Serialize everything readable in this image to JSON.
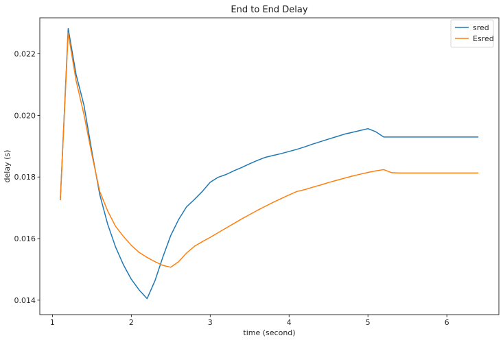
{
  "chart_data": {
    "type": "line",
    "title": "End to End Delay",
    "xlabel": "time (second)",
    "ylabel": "delay (s)",
    "xlim": [
      0.84,
      6.66
    ],
    "ylim": [
      0.01353,
      0.02317
    ],
    "xticks": [
      1,
      2,
      3,
      4,
      5,
      6
    ],
    "yticks": [
      0.014,
      0.016,
      0.018,
      0.02,
      0.022
    ],
    "ytick_labels": [
      "0.014",
      "0.016",
      "0.018",
      "0.020",
      "0.022"
    ],
    "grid": false,
    "legend": "upper right",
    "series": [
      {
        "name": "sred",
        "color": "#1f77b4",
        "x": [
          1.1,
          1.2,
          1.3,
          1.4,
          1.5,
          1.6,
          1.7,
          1.8,
          1.9,
          2.0,
          2.1,
          2.2,
          2.3,
          2.4,
          2.5,
          2.6,
          2.7,
          2.8,
          2.9,
          3.0,
          3.1,
          3.2,
          3.3,
          3.4,
          3.5,
          3.6,
          3.7,
          3.8,
          3.9,
          4.0,
          4.1,
          4.2,
          4.3,
          4.4,
          4.5,
          4.6,
          4.7,
          4.8,
          4.9,
          5.0,
          5.1,
          5.2,
          5.3,
          5.4,
          5.5,
          5.6,
          5.7,
          5.8,
          5.9,
          6.0,
          6.1,
          6.2,
          6.3,
          6.4
        ],
        "y": [
          0.01725,
          0.02282,
          0.02133,
          0.02033,
          0.01883,
          0.01743,
          0.01647,
          0.01573,
          0.01515,
          0.01468,
          0.01433,
          0.01405,
          0.01463,
          0.0154,
          0.0161,
          0.01662,
          0.01703,
          0.01727,
          0.01753,
          0.01783,
          0.01799,
          0.01808,
          0.0182,
          0.01831,
          0.01843,
          0.01854,
          0.01864,
          0.0187,
          0.01876,
          0.01883,
          0.0189,
          0.01898,
          0.01907,
          0.01915,
          0.01923,
          0.01931,
          0.01939,
          0.01945,
          0.01951,
          0.01957,
          0.01947,
          0.0193,
          0.0193,
          0.0193,
          0.0193,
          0.0193,
          0.0193,
          0.0193,
          0.0193,
          0.0193,
          0.0193,
          0.0193,
          0.0193,
          0.0193
        ]
      },
      {
        "name": "Esred",
        "color": "#ff7f0e",
        "x": [
          1.1,
          1.2,
          1.3,
          1.4,
          1.5,
          1.6,
          1.7,
          1.8,
          1.9,
          2.0,
          2.1,
          2.2,
          2.3,
          2.4,
          2.5,
          2.6,
          2.7,
          2.8,
          2.9,
          3.0,
          3.1,
          3.2,
          3.3,
          3.4,
          3.5,
          3.6,
          3.7,
          3.8,
          3.9,
          4.0,
          4.1,
          4.2,
          4.3,
          4.4,
          4.5,
          4.6,
          4.7,
          4.8,
          4.9,
          5.0,
          5.1,
          5.2,
          5.3,
          5.4,
          5.5,
          5.6,
          5.7,
          5.8,
          5.9,
          6.0,
          6.1,
          6.2,
          6.3,
          6.4
        ],
        "y": [
          0.01725,
          0.02268,
          0.02113,
          0.02003,
          0.01873,
          0.01753,
          0.0169,
          0.0164,
          0.01607,
          0.01578,
          0.01555,
          0.01539,
          0.01525,
          0.01513,
          0.01507,
          0.01525,
          0.01553,
          0.01575,
          0.0159,
          0.01604,
          0.01619,
          0.01634,
          0.01649,
          0.01664,
          0.01678,
          0.01692,
          0.01705,
          0.01718,
          0.0173,
          0.01742,
          0.01753,
          0.01759,
          0.01767,
          0.01774,
          0.01782,
          0.01789,
          0.01796,
          0.01803,
          0.01809,
          0.01815,
          0.0182,
          0.01824,
          0.01814,
          0.01813,
          0.01813,
          0.01813,
          0.01813,
          0.01813,
          0.01813,
          0.01813,
          0.01813,
          0.01813,
          0.01813,
          0.01813
        ]
      }
    ]
  }
}
